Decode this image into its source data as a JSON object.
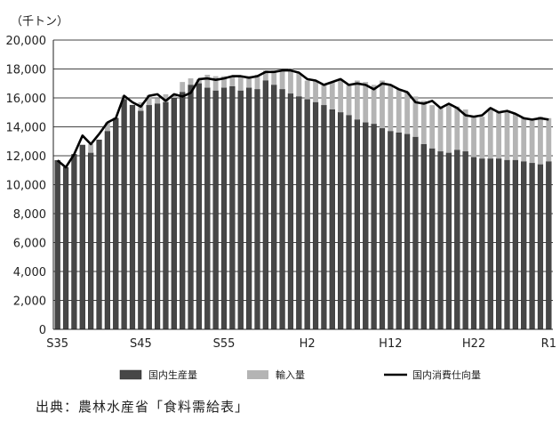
{
  "chart_data": {
    "type": "bar",
    "unit_label": "（千トン）",
    "ylim": [
      0,
      20000
    ],
    "yticks": [
      0,
      2000,
      4000,
      6000,
      8000,
      10000,
      12000,
      14000,
      16000,
      18000,
      20000
    ],
    "ytick_labels": [
      "0",
      "2,000",
      "4,000",
      "6,000",
      "8,000",
      "10,000",
      "12,000",
      "14,000",
      "16,000",
      "18,000",
      "20,000"
    ],
    "categories": [
      "S35",
      "S36",
      "S37",
      "S38",
      "S39",
      "S40",
      "S41",
      "S42",
      "S43",
      "S44",
      "S45",
      "S46",
      "S47",
      "S48",
      "S49",
      "S50",
      "S51",
      "S52",
      "S53",
      "S54",
      "S55",
      "S56",
      "S57",
      "S58",
      "S59",
      "S60",
      "S61",
      "S62",
      "S63",
      "H1",
      "H2",
      "H3",
      "H4",
      "H5",
      "H6",
      "H7",
      "H8",
      "H9",
      "H10",
      "H11",
      "H12",
      "H13",
      "H14",
      "H15",
      "H16",
      "H17",
      "H18",
      "H19",
      "H20",
      "H21",
      "H22",
      "H23",
      "H24",
      "H25",
      "H26",
      "H27",
      "H28",
      "H29",
      "H30",
      "R1"
    ],
    "xtick_labels": [
      {
        "index": 0,
        "label": "S35"
      },
      {
        "index": 10,
        "label": "S45"
      },
      {
        "index": 20,
        "label": "S55"
      },
      {
        "index": 30,
        "label": "H2"
      },
      {
        "index": 40,
        "label": "H12"
      },
      {
        "index": 50,
        "label": "H22"
      },
      {
        "index": 59,
        "label": "R1"
      }
    ],
    "series": [
      {
        "name": "国内生産量",
        "type": "bar",
        "color": "#474747",
        "values": [
          11680,
          11200,
          12100,
          12740,
          12200,
          13100,
          13700,
          14600,
          15900,
          15500,
          15100,
          15500,
          15600,
          15700,
          16000,
          16400,
          16900,
          17000,
          16700,
          16500,
          16700,
          16800,
          16500,
          16700,
          16600,
          17200,
          16900,
          16600,
          16300,
          16100,
          15900,
          15700,
          15500,
          15200,
          15000,
          14800,
          14500,
          14300,
          14200,
          13900,
          13700,
          13600,
          13500,
          13300,
          12800,
          12500,
          12300,
          12200,
          12400,
          12300,
          11900,
          11800,
          11800,
          11800,
          11700,
          11700,
          11600,
          11500,
          11400,
          11600
        ]
      },
      {
        "name": "輸入量",
        "type": "bar",
        "color": "#b4b4b4",
        "values": [
          0,
          0,
          0,
          0,
          600,
          0,
          600,
          0,
          250,
          0,
          600,
          700,
          350,
          550,
          250,
          700,
          450,
          300,
          900,
          1000,
          800,
          700,
          1000,
          800,
          1000,
          700,
          1000,
          1300,
          1700,
          1600,
          1300,
          1500,
          1400,
          1900,
          2300,
          2100,
          2700,
          2800,
          2700,
          3300,
          3200,
          3000,
          2900,
          2800,
          3000,
          3000,
          3000,
          3400,
          3000,
          2900,
          2800,
          2900,
          3500,
          3200,
          3400,
          3200,
          3000,
          3000,
          3300,
          3000
        ]
      },
      {
        "name": "国内消費仕向量",
        "type": "line",
        "color": "#000000",
        "values": [
          11680,
          11200,
          12100,
          13400,
          12800,
          13500,
          14300,
          14600,
          16150,
          15700,
          15400,
          16150,
          16250,
          15800,
          16250,
          16100,
          16350,
          17300,
          17350,
          17250,
          17350,
          17500,
          17500,
          17400,
          17500,
          17800,
          17800,
          17900,
          17900,
          17750,
          17300,
          17200,
          16900,
          17100,
          17300,
          16900,
          17000,
          16900,
          16600,
          17000,
          16900,
          16600,
          16400,
          15700,
          15600,
          15800,
          15300,
          15600,
          15300,
          14800,
          14700,
          14800,
          15300,
          15000,
          15100,
          14900,
          14600,
          14500,
          14600,
          14500
        ]
      }
    ],
    "legend": [
      "国内生産量",
      "輸入量",
      "国内消費仕向量"
    ],
    "legend_placement": "bottom",
    "grid": {
      "horizontal": true,
      "vertical": false
    }
  },
  "source_note": "出典：農林水産省「食料需給表」"
}
